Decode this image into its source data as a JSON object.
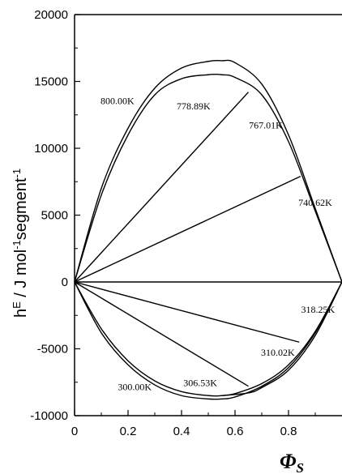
{
  "chart_data": {
    "type": "line",
    "xlabel": "Φ",
    "xlabel_sub": "S",
    "ylabel": "h",
    "ylabel_sup": "E",
    "ylabel_rest": " / J mol",
    "ylabel_sup2": "-1",
    "ylabel_rest2": "segment",
    "ylabel_sup3": "-1",
    "xlim": [
      0,
      1
    ],
    "ylim": [
      -10000,
      20000
    ],
    "x_ticks": [
      "0",
      "0.2",
      "0.4",
      "0.6",
      "0.8"
    ],
    "y_ticks": [
      "20000",
      "15000",
      "10000",
      "5000",
      "0",
      "-5000",
      "-10000"
    ],
    "grid": false,
    "series": [
      {
        "name": "800.00K",
        "x": [
          0,
          0.1,
          0.2,
          0.3,
          0.4,
          0.5,
          0.55,
          0.6,
          0.7,
          0.8,
          0.9,
          1.0
        ],
        "y": [
          0,
          7000,
          11500,
          14500,
          16000,
          16500,
          16550,
          16400,
          14800,
          11000,
          5500,
          0
        ]
      },
      {
        "name": "778.89K",
        "x": [
          0,
          0.1,
          0.2,
          0.3,
          0.4,
          0.5,
          0.55,
          0.6,
          0.7,
          0.8,
          0.9,
          1.0
        ],
        "y": [
          0,
          6500,
          11000,
          14000,
          15200,
          15500,
          15500,
          15300,
          14000,
          10500,
          5300,
          0
        ]
      },
      {
        "name": "767.01K",
        "x": [
          0,
          0.65
        ],
        "y": [
          0,
          14200
        ]
      },
      {
        "name": "740.62K",
        "x": [
          0,
          0.845
        ],
        "y": [
          0,
          7900
        ]
      },
      {
        "name": "",
        "x": [
          0,
          1.0
        ],
        "y": [
          0,
          0
        ]
      },
      {
        "name": "318.25K",
        "x": [
          0,
          0.84
        ],
        "y": [
          0,
          -4500
        ]
      },
      {
        "name": "310.02K",
        "x": [
          0,
          0.65
        ],
        "y": [
          0,
          -7800
        ]
      },
      {
        "name": "306.53K",
        "x": [
          0.55,
          0.65,
          0.7,
          0.8,
          0.9,
          1.0
        ],
        "y": [
          -8500,
          -8300,
          -7900,
          -6600,
          -4000,
          0
        ]
      },
      {
        "name": "300.00K",
        "x": [
          0,
          0.1,
          0.2,
          0.3,
          0.4,
          0.5,
          0.55,
          0.6,
          0.7,
          0.8,
          0.9,
          1.0
        ],
        "y": [
          0,
          -3800,
          -6200,
          -7700,
          -8500,
          -8750,
          -8750,
          -8600,
          -7800,
          -6400,
          -3800,
          0
        ]
      },
      {
        "name": "",
        "x": [
          0,
          0.1,
          0.2,
          0.3,
          0.4,
          0.5,
          0.55,
          0.6,
          0.7,
          0.8,
          0.9,
          1.0
        ],
        "y": [
          0,
          -3500,
          -5900,
          -7400,
          -8200,
          -8500,
          -8500,
          -8350,
          -7600,
          -6200,
          -3700,
          0
        ]
      }
    ],
    "labels": [
      {
        "text": "800.00K",
        "x": 0.16,
        "y": 13300
      },
      {
        "text": "778.89K",
        "x": 0.445,
        "y": 12900
      },
      {
        "text": "767.01K",
        "x": 0.715,
        "y": 11500
      },
      {
        "text": "740.62K",
        "x": 0.9,
        "y": 5700
      },
      {
        "text": "318.25K",
        "x": 0.91,
        "y": -2300
      },
      {
        "text": "310.02K",
        "x": 0.76,
        "y": -5500
      },
      {
        "text": "306.53K",
        "x": 0.47,
        "y": -7800
      },
      {
        "text": "300.00K",
        "x": 0.225,
        "y": -8100
      }
    ]
  }
}
